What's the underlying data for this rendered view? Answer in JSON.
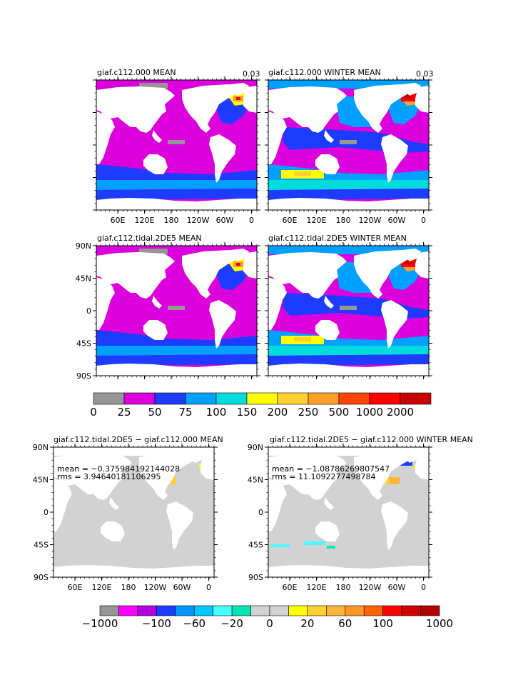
{
  "units_label": "0.03",
  "panels": [
    {
      "id": "p1",
      "title": "giaf.c112.000 MEAN",
      "corner": "0.03",
      "kind": "mean"
    },
    {
      "id": "p2",
      "title": "giaf.c112.000 WINTER MEAN",
      "corner": "0.03",
      "kind": "winter"
    },
    {
      "id": "p3",
      "title": "giaf.c112.tidal.2DE5 MEAN",
      "corner": "",
      "kind": "mean"
    },
    {
      "id": "p4",
      "title": "giaf.c112.tidal.2DE5 WINTER MEAN",
      "corner": "",
      "kind": "winter"
    },
    {
      "id": "p5",
      "title": "giaf.c112.tidal.2DE5 − giaf.c112.000 MEAN",
      "kind": "diff",
      "mean_text": "mean = −0.375984192144028",
      "rms_text": "rms = 3.94640181106295"
    },
    {
      "id": "p6",
      "title": "giaf.c112.tidal.2DE5 − giaf.c112.000 WINTER MEAN",
      "kind": "diff",
      "mean_text": "mean = −1.08786269807547",
      "rms_text": "rms = 11.1092277498784"
    }
  ],
  "lon_ticks": [
    "60E",
    "120E",
    "180",
    "120W",
    "60W",
    "0"
  ],
  "lat_ticks": [
    "90N",
    "45N",
    "0",
    "45S",
    "90S"
  ],
  "colorbar_top": {
    "labels": [
      "0",
      "25",
      "50",
      "75",
      "100",
      "150",
      "200",
      "250",
      "500",
      "1000",
      "2000"
    ],
    "colors": [
      "#969696",
      "#dc00dc",
      "#1e3cff",
      "#00a0ff",
      "#00dcdc",
      "#ffff00",
      "#ffd232",
      "#ffa028",
      "#ff4600",
      "#ff0000",
      "#c80000"
    ]
  },
  "colorbar_bottom": {
    "labels": [
      "−1000",
      "−100",
      "−60",
      "−20",
      "0",
      "20",
      "60",
      "100",
      "1000"
    ],
    "colors": [
      "#969696",
      "#ff00ff",
      "#b400dc",
      "#1e3cff",
      "#0096ff",
      "#00c8ff",
      "#46ffff",
      "#00e6b4",
      "#d2d2d2",
      "#d2d2d2",
      "#ffff00",
      "#ffd232",
      "#ffb43c",
      "#ff9628",
      "#ff6400",
      "#ff0000",
      "#d20000",
      "#b40000"
    ]
  }
}
